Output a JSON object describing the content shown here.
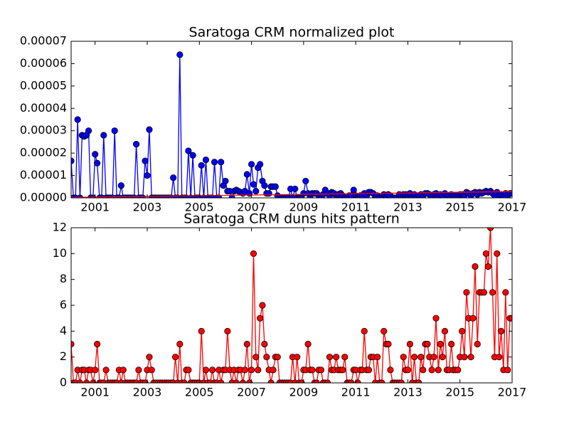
{
  "chart_data": [
    {
      "type": "line",
      "title": "Saratoga CRM normalized plot",
      "x": [
        2000.08,
        2000.17,
        2000.25,
        2000.33,
        2000.42,
        2000.5,
        2000.58,
        2000.67,
        2000.75,
        2000.83,
        2000.92,
        2001,
        2001.08,
        2001.17,
        2001.25,
        2001.33,
        2001.42,
        2001.5,
        2001.58,
        2001.67,
        2001.75,
        2001.83,
        2001.92,
        2002,
        2002.08,
        2002.17,
        2002.25,
        2002.33,
        2002.42,
        2002.5,
        2002.58,
        2002.67,
        2002.75,
        2002.83,
        2002.92,
        2003,
        2003.08,
        2003.17,
        2003.25,
        2003.33,
        2003.42,
        2003.5,
        2003.58,
        2003.67,
        2003.75,
        2003.83,
        2003.92,
        2004,
        2004.08,
        2004.17,
        2004.25,
        2004.33,
        2004.42,
        2004.5,
        2004.58,
        2004.67,
        2004.75,
        2004.83,
        2004.92,
        2005,
        2005.08,
        2005.17,
        2005.25,
        2005.33,
        2005.42,
        2005.5,
        2005.58,
        2005.67,
        2005.75,
        2005.83,
        2005.92,
        2006,
        2006.08,
        2006.17,
        2006.25,
        2006.33,
        2006.42,
        2006.5,
        2006.58,
        2006.67,
        2006.75,
        2006.83,
        2006.92,
        2007,
        2007.08,
        2007.17,
        2007.25,
        2007.33,
        2007.42,
        2007.5,
        2007.58,
        2007.67,
        2007.75,
        2007.83,
        2007.92,
        2008,
        2008.08,
        2008.17,
        2008.25,
        2008.33,
        2008.42,
        2008.5,
        2008.58,
        2008.67,
        2008.75,
        2008.83,
        2008.92,
        2009,
        2009.08,
        2009.17,
        2009.25,
        2009.33,
        2009.42,
        2009.5,
        2009.58,
        2009.67,
        2009.75,
        2009.83,
        2009.92,
        2010,
        2010.08,
        2010.17,
        2010.25,
        2010.33,
        2010.42,
        2010.5,
        2010.58,
        2010.67,
        2010.75,
        2010.83,
        2010.92,
        2011,
        2011.08,
        2011.17,
        2011.25,
        2011.33,
        2011.42,
        2011.5,
        2011.58,
        2011.67,
        2011.75,
        2011.83,
        2011.92,
        2012,
        2012.08,
        2012.17,
        2012.25,
        2012.33,
        2012.42,
        2012.5,
        2012.58,
        2012.67,
        2012.75,
        2012.83,
        2012.92,
        2013,
        2013.08,
        2013.17,
        2013.25,
        2013.33,
        2013.42,
        2013.5,
        2013.58,
        2013.67,
        2013.75,
        2013.83,
        2013.92,
        2014,
        2014.08,
        2014.17,
        2014.25,
        2014.33,
        2014.42,
        2014.5,
        2014.58,
        2014.67,
        2014.75,
        2014.83,
        2014.92,
        2015,
        2015.08,
        2015.17,
        2015.25,
        2015.33,
        2015.42,
        2015.5,
        2015.58,
        2015.67,
        2015.75,
        2015.83,
        2015.92,
        2016,
        2016.08,
        2016.17,
        2016.25,
        2016.33,
        2016.42,
        2016.5,
        2016.58,
        2016.67,
        2016.75,
        2016.83,
        2016.92,
        2017
      ],
      "series": [
        {
          "color": "#0000ff",
          "marker": true,
          "values": [
            1.65e-05,
            0,
            0,
            3.5e-05,
            0,
            2.8e-05,
            2.75e-05,
            2.8e-05,
            3e-05,
            0,
            0,
            1.95e-05,
            1.55e-05,
            0,
            0,
            2.8e-05,
            0,
            0,
            0,
            0,
            3e-05,
            0,
            0,
            5.5e-06,
            0,
            0,
            0,
            0,
            0,
            0,
            2.4e-05,
            0,
            0,
            0,
            1.65e-05,
            1e-05,
            3.05e-05,
            0,
            0,
            0,
            0,
            0,
            0,
            0,
            0,
            0,
            0,
            9e-06,
            0,
            0,
            6.4e-05,
            0,
            0,
            0,
            2.1e-05,
            0,
            1.9e-05,
            0,
            0,
            0,
            1.45e-05,
            0,
            1.7e-05,
            0,
            0,
            0,
            1.6e-05,
            0,
            0,
            1.6e-05,
            5.5e-06,
            7.5e-06,
            3e-06,
            3e-06,
            0,
            3e-06,
            3.5e-06,
            3e-06,
            2.5e-06,
            2e-06,
            3e-06,
            1.05e-05,
            2e-06,
            1.5e-05,
            6e-06,
            3e-06,
            1.35e-05,
            1.5e-05,
            7.5e-06,
            5.5e-06,
            2e-06,
            2e-06,
            5e-06,
            5e-06,
            5e-06,
            1e-06,
            0,
            0,
            0,
            0,
            0,
            4e-06,
            0,
            4e-06,
            0,
            0,
            0,
            2e-06,
            7.5e-06,
            2e-06,
            0,
            2e-06,
            2e-06,
            2e-06,
            1e-06,
            0,
            1.5e-06,
            3.5e-06,
            2e-06,
            1e-06,
            2.5e-06,
            2e-06,
            1e-06,
            1.5e-06,
            2e-06,
            1e-06,
            0,
            0,
            1e-06,
            1e-06,
            3.5e-06,
            1e-06,
            0,
            1e-06,
            1e-06,
            2e-06,
            1e-06,
            2.5e-06,
            2.5e-06,
            2e-06,
            0,
            1e-06,
            0,
            0,
            1.5e-06,
            1e-06,
            1.5e-06,
            1e-06,
            0,
            0,
            0,
            1.5e-06,
            1e-06,
            1.5e-06,
            1.5e-06,
            1e-06,
            2e-06,
            0,
            1.5e-06,
            0,
            1e-06,
            1.5e-06,
            1e-06,
            2e-06,
            2e-06,
            1.5e-06,
            1e-06,
            1.5e-06,
            2e-06,
            1e-06,
            1.5e-06,
            1e-06,
            2e-06,
            1e-06,
            1e-06,
            1.5e-06,
            1e-06,
            1e-06,
            1e-06,
            1.5e-06,
            1.5e-06,
            1e-06,
            2.5e-06,
            2e-06,
            1e-06,
            2e-06,
            2.5e-06,
            1.5e-06,
            2.5e-06,
            2e-06,
            2.5e-06,
            3e-06,
            2.5e-06,
            3e-06,
            2e-06,
            1e-06,
            2.5e-06,
            1e-06,
            1.5e-06,
            1e-06,
            2e-06,
            1e-06,
            2e-06,
            2e-06
          ]
        },
        {
          "color": "#ff0000",
          "marker": false,
          "x": [
            2000.08,
            2017
          ],
          "values": [
            2e-07,
            2.8e-06
          ]
        }
      ],
      "xlim": [
        2000.08,
        2017
      ],
      "xticks": [
        2001,
        2003,
        2005,
        2007,
        2009,
        2011,
        2013,
        2015,
        2017
      ],
      "ylim": [
        0,
        7e-05
      ],
      "yticks": [
        {
          "value": 0,
          "label": "0.00000"
        },
        {
          "value": 1e-05,
          "label": "0.00001"
        },
        {
          "value": 2e-05,
          "label": "0.00002"
        },
        {
          "value": 3e-05,
          "label": "0.00003"
        },
        {
          "value": 4e-05,
          "label": "0.00004"
        },
        {
          "value": 5e-05,
          "label": "0.00005"
        },
        {
          "value": 6e-05,
          "label": "0.00006"
        },
        {
          "value": 7e-05,
          "label": "0.00007"
        }
      ]
    },
    {
      "type": "line",
      "title": "Saratoga CRM duns hits pattern",
      "x": [
        2000.08,
        2000.17,
        2000.25,
        2000.33,
        2000.42,
        2000.5,
        2000.58,
        2000.67,
        2000.75,
        2000.83,
        2000.92,
        2001,
        2001.08,
        2001.17,
        2001.25,
        2001.33,
        2001.42,
        2001.5,
        2001.58,
        2001.67,
        2001.75,
        2001.83,
        2001.92,
        2002,
        2002.08,
        2002.17,
        2002.25,
        2002.33,
        2002.42,
        2002.5,
        2002.58,
        2002.67,
        2002.75,
        2002.83,
        2002.92,
        2003,
        2003.08,
        2003.17,
        2003.25,
        2003.33,
        2003.42,
        2003.5,
        2003.58,
        2003.67,
        2003.75,
        2003.83,
        2003.92,
        2004,
        2004.08,
        2004.17,
        2004.25,
        2004.33,
        2004.42,
        2004.5,
        2004.58,
        2004.67,
        2004.75,
        2004.83,
        2004.92,
        2005,
        2005.08,
        2005.17,
        2005.25,
        2005.33,
        2005.42,
        2005.5,
        2005.58,
        2005.67,
        2005.75,
        2005.83,
        2005.92,
        2006,
        2006.08,
        2006.17,
        2006.25,
        2006.33,
        2006.42,
        2006.5,
        2006.58,
        2006.67,
        2006.75,
        2006.83,
        2006.92,
        2007,
        2007.08,
        2007.17,
        2007.25,
        2007.33,
        2007.42,
        2007.5,
        2007.58,
        2007.67,
        2007.75,
        2007.83,
        2007.92,
        2008,
        2008.08,
        2008.17,
        2008.25,
        2008.33,
        2008.42,
        2008.5,
        2008.58,
        2008.67,
        2008.75,
        2008.83,
        2008.92,
        2009,
        2009.08,
        2009.17,
        2009.25,
        2009.33,
        2009.42,
        2009.5,
        2009.58,
        2009.67,
        2009.75,
        2009.83,
        2009.92,
        2010,
        2010.08,
        2010.17,
        2010.25,
        2010.33,
        2010.42,
        2010.5,
        2010.58,
        2010.67,
        2010.75,
        2010.83,
        2010.92,
        2011,
        2011.08,
        2011.17,
        2011.25,
        2011.33,
        2011.42,
        2011.5,
        2011.58,
        2011.67,
        2011.75,
        2011.83,
        2011.92,
        2012,
        2012.08,
        2012.17,
        2012.25,
        2012.33,
        2012.42,
        2012.5,
        2012.58,
        2012.67,
        2012.75,
        2012.83,
        2012.92,
        2013,
        2013.08,
        2013.17,
        2013.25,
        2013.33,
        2013.42,
        2013.5,
        2013.58,
        2013.67,
        2013.75,
        2013.83,
        2013.92,
        2014,
        2014.08,
        2014.17,
        2014.25,
        2014.33,
        2014.42,
        2014.5,
        2014.58,
        2014.67,
        2014.75,
        2014.83,
        2014.92,
        2015,
        2015.08,
        2015.17,
        2015.25,
        2015.33,
        2015.42,
        2015.5,
        2015.58,
        2015.67,
        2015.75,
        2015.83,
        2015.92,
        2016,
        2016.08,
        2016.17,
        2016.25,
        2016.33,
        2016.42,
        2016.5,
        2016.58,
        2016.67,
        2016.75,
        2016.83,
        2016.92,
        2017
      ],
      "series": [
        {
          "color": "#ff0000",
          "marker": true,
          "values": [
            3,
            0,
            0,
            1,
            0,
            1,
            1,
            0,
            1,
            1,
            0,
            1,
            3,
            0,
            0,
            0,
            1,
            0,
            0,
            0,
            0,
            0,
            1,
            0,
            1,
            0,
            0,
            0,
            0,
            0,
            0,
            1,
            0,
            0,
            0,
            1,
            2,
            1,
            0,
            0,
            0,
            0,
            0,
            0,
            0,
            0,
            0,
            0,
            2,
            0,
            3,
            0,
            0,
            1,
            1,
            0,
            0,
            0,
            0,
            0,
            4,
            0,
            1,
            0,
            0,
            1,
            0,
            0,
            1,
            0,
            1,
            1,
            4,
            1,
            0,
            1,
            0,
            1,
            1,
            0,
            1,
            3,
            0,
            1,
            10,
            2,
            1,
            5,
            6,
            3,
            2,
            1,
            0,
            1,
            2,
            2,
            0,
            0,
            0,
            0,
            0,
            0,
            2,
            0,
            2,
            0,
            0,
            1,
            1,
            3,
            1,
            1,
            0,
            0,
            1,
            1,
            0,
            0,
            0,
            2,
            1,
            1,
            2,
            1,
            1,
            1,
            2,
            0,
            0,
            0,
            1,
            1,
            0,
            1,
            1,
            4,
            1,
            1,
            2,
            2,
            0,
            2,
            0,
            0,
            4,
            3,
            3,
            1,
            0,
            0,
            0,
            0,
            0,
            2,
            1,
            1,
            3,
            0,
            2,
            0,
            0,
            2,
            1,
            3,
            3,
            2,
            1,
            2,
            5,
            1,
            3,
            2,
            4,
            1,
            1,
            3,
            1,
            1,
            1,
            2,
            4,
            2,
            7,
            5,
            2,
            5,
            9,
            3,
            7,
            7,
            7,
            10,
            9,
            12,
            7,
            2,
            10,
            2,
            4,
            1,
            7,
            1,
            5,
            5
          ]
        }
      ],
      "xlim": [
        2000.08,
        2017
      ],
      "xticks": [
        2001,
        2003,
        2005,
        2007,
        2009,
        2011,
        2013,
        2015,
        2017
      ],
      "ylim": [
        0,
        12
      ],
      "yticks": [
        0,
        2,
        4,
        6,
        8,
        10,
        12
      ]
    }
  ]
}
